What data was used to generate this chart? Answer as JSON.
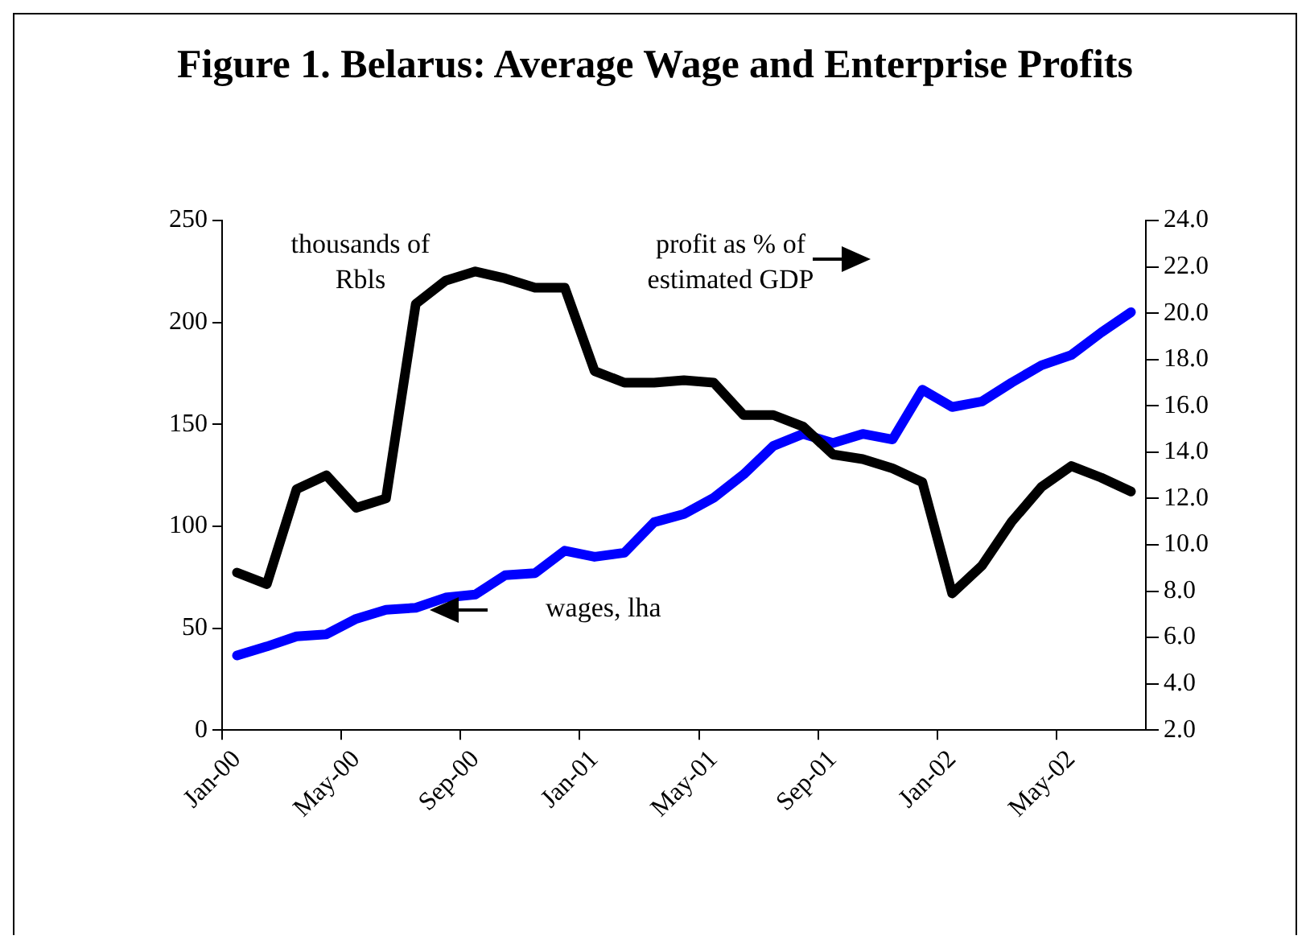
{
  "chart_data": {
    "type": "line",
    "title": "Figure 1. Belarus: Average Wage and Enterprise Profits",
    "categories": [
      "Jan-00",
      null,
      null,
      null,
      "May-00",
      null,
      null,
      null,
      "Sep-00",
      null,
      null,
      null,
      "Jan-01",
      null,
      null,
      null,
      "May-01",
      null,
      null,
      null,
      "Sep-01",
      null,
      null,
      null,
      "Jan-02",
      null,
      null,
      null,
      "May-02",
      null,
      null
    ],
    "series": [
      {
        "color": "#000000",
        "axis": "y2",
        "values": [
          8.8,
          8.3,
          12.4,
          13.0,
          11.6,
          12.0,
          20.4,
          21.4,
          21.8,
          21.5,
          21.1,
          21.1,
          17.5,
          17.0,
          17.0,
          17.1,
          17.0,
          15.6,
          15.6,
          15.1,
          13.9,
          13.7,
          13.3,
          12.7,
          7.9,
          9.1,
          11.0,
          12.5,
          13.4,
          12.9,
          12.3
        ]
      },
      {
        "color": "#0000ff",
        "values": [
          36.6,
          41,
          46,
          47,
          54.6,
          59,
          60,
          65,
          66.5,
          76,
          77,
          88,
          85,
          87,
          102,
          106,
          114,
          125.4,
          139.4,
          145.3,
          140.8,
          145.3,
          142.6,
          167,
          158.5,
          161.2,
          170.5,
          179,
          184,
          195,
          205
        ]
      }
    ],
    "ylim": [
      0,
      250
    ],
    "yticks": [
      0,
      50,
      100,
      150,
      200,
      250
    ],
    "y2lim": [
      2,
      24
    ],
    "y2ticks": [
      {
        "value": 2,
        "label": "2.0"
      },
      {
        "value": 4,
        "label": "4.0"
      },
      {
        "value": 6,
        "label": "6.0"
      },
      {
        "value": 8,
        "label": "8.0"
      },
      {
        "value": 10,
        "label": "10.0"
      },
      {
        "value": 12,
        "label": "12.0"
      },
      {
        "value": 14,
        "label": "14.0"
      },
      {
        "value": 16,
        "label": "16.0"
      },
      {
        "value": 18,
        "label": "18.0"
      },
      {
        "value": 20,
        "label": "20.0"
      },
      {
        "value": 22,
        "label": "22.0"
      },
      {
        "value": 24,
        "label": "24.0"
      }
    ],
    "annotations": [
      "thousands of Rbls",
      "profit as % of estimated GDP",
      "wages, lha"
    ],
    "grid": false,
    "legend": false,
    "marker": "none",
    "line_style": "solid"
  }
}
